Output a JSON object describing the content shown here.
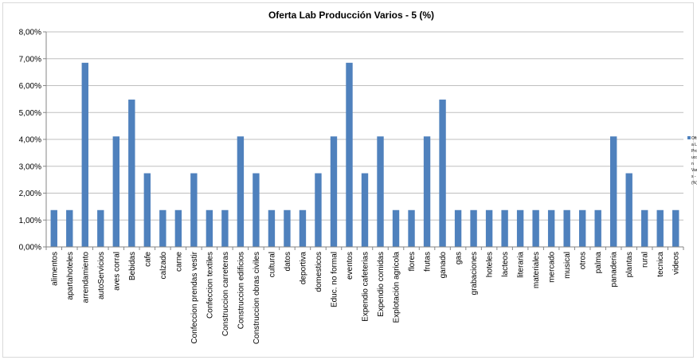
{
  "chart_data": {
    "type": "bar",
    "title": "Oferta Lab Producción Varios - 5 (%)",
    "xlabel": "",
    "ylabel": "",
    "ylim": [
      0,
      8
    ],
    "y_ticks": [
      "0,00%",
      "1,00%",
      "2,00%",
      "3,00%",
      "4,00%",
      "5,00%",
      "6,00%",
      "7,00%",
      "8,00%"
    ],
    "grid": true,
    "legend_position": "right",
    "legend_text_lines": [
      "Oft",
      "a L",
      "Pro",
      "ucc",
      "n",
      "Var",
      "s -",
      "(%)"
    ],
    "bar_color": "#4f81bd",
    "categories": [
      "alimentos",
      "apartahoteles",
      "arrendamiento",
      "autoServicios",
      "aves corral",
      "Bebidas",
      "cafe",
      "calzado",
      "carne",
      "Confeccion prendas vestir",
      "Confeccion textiles",
      "Construccion carreteras",
      "Construccion edificios",
      "Construccion obras civiles",
      "cultural",
      "datos",
      "deportiva",
      "domesticos",
      "Educ. no formal",
      "eventos",
      "Expendio cafeterias",
      "Expendio comidas",
      "Explotación agricola",
      "flores",
      "frutas",
      "ganado",
      "gas",
      "grabaciones",
      "hoteles",
      "lacteos",
      "literaria",
      "materiales",
      "mercado",
      "musical",
      "otros",
      "palma",
      "panaderia",
      "plantas",
      "rural",
      "tecnica",
      "videos"
    ],
    "series": [
      {
        "values": [
          1.37,
          1.37,
          6.85,
          1.37,
          4.11,
          5.48,
          2.74,
          1.37,
          1.37,
          2.74,
          1.37,
          1.37,
          4.11,
          2.74,
          1.37,
          1.37,
          1.37,
          2.74,
          4.11,
          6.85,
          2.74,
          4.11,
          1.37,
          1.37,
          4.11,
          5.48,
          1.37,
          1.37,
          1.37,
          1.37,
          1.37,
          1.37,
          1.37,
          1.37,
          1.37,
          1.37,
          4.11,
          2.74,
          1.37,
          1.37,
          1.37
        ]
      }
    ]
  }
}
